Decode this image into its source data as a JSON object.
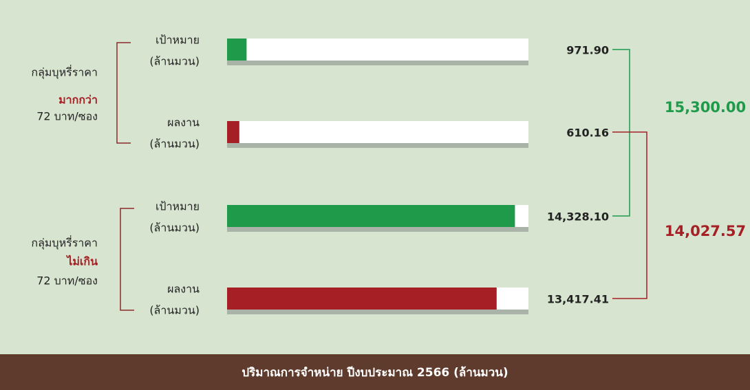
{
  "chart_data": {
    "type": "bar",
    "orientation": "horizontal",
    "title": "ปริมาณการจำหน่าย ปีงบประมาณ 2566  (ล้านมวน)",
    "groups": [
      {
        "label": "กลุ่มบุหรี่ราคา",
        "highlight": "มากกว่า",
        "note": "72 บาท/ซอง"
      },
      {
        "label": "กลุ่มบุหรี่ราคา",
        "highlight": "ไม่เกิน",
        "note": "72 บาท/ซอง"
      }
    ],
    "categories": [
      "เป้าหมาย",
      "ผลงาน",
      "เป้าหมาย",
      "ผลงาน"
    ],
    "unit_label": "(ล้านมวน)",
    "values": [
      971.9,
      610.16,
      14328.1,
      13417.41
    ],
    "value_labels": [
      "971.90",
      "610.16",
      "14,328.10",
      "13,417.41"
    ],
    "colors": [
      "#1f9a4b",
      "#a51f24",
      "#1f9a4b",
      "#a51f24"
    ],
    "totals": [
      {
        "value": 15300,
        "label": "15,300.00",
        "color": "#1f9a4b"
      },
      {
        "value": 14027.57,
        "label": "14,027.57",
        "color": "#a51f24"
      }
    ],
    "highlight_color": "#a51f24",
    "xlim": [
      0,
      15000
    ]
  }
}
